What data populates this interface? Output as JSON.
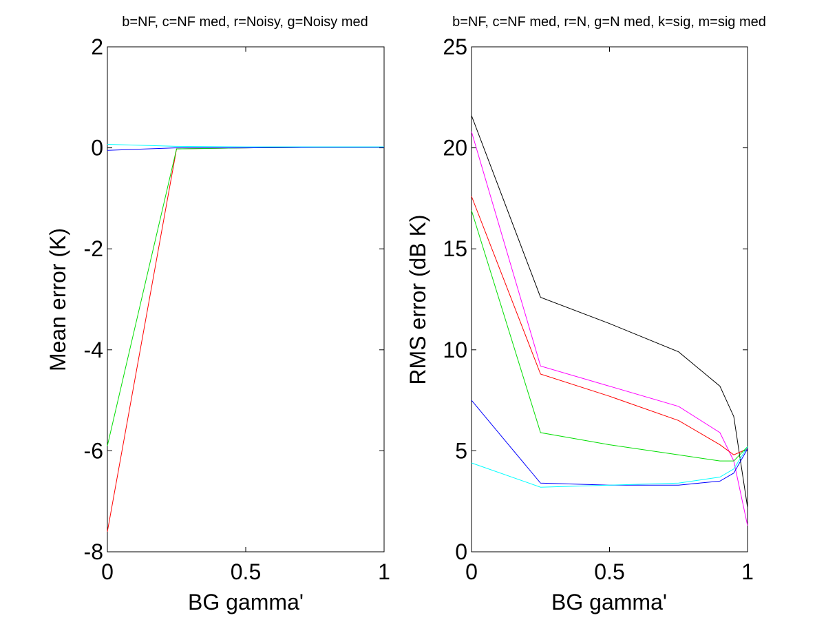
{
  "chart_data": [
    {
      "type": "line",
      "title": "b=NF, c=NF med, r=Noisy, g=Noisy med",
      "xlabel": "BG gamma'",
      "ylabel": "Mean error (K)",
      "xlim": [
        0,
        1
      ],
      "ylim": [
        -8,
        2
      ],
      "xticks": [
        0,
        0.5,
        1
      ],
      "xtick_labels": [
        "0",
        "0.5",
        "1"
      ],
      "yticks": [
        -8,
        -6,
        -4,
        -2,
        0,
        2
      ],
      "ytick_labels": [
        "-8",
        "-6",
        "-4",
        "-2",
        "0",
        "2"
      ],
      "grid": false,
      "series": [
        {
          "color": "#ff0000",
          "x": [
            0,
            0.25,
            0.5,
            0.75,
            0.9,
            0.95,
            1
          ],
          "y": [
            -7.6,
            -0.02,
            0.0,
            0.01,
            0.01,
            0.01,
            0.01
          ]
        },
        {
          "color": "#00dd00",
          "x": [
            0,
            0.25,
            0.5,
            0.75,
            0.9,
            0.95,
            1
          ],
          "y": [
            -5.9,
            -0.02,
            0.0,
            0.01,
            0.01,
            0.01,
            0.01
          ]
        },
        {
          "color": "#0000ff",
          "x": [
            0,
            0.25,
            0.5,
            0.75,
            0.9,
            0.95,
            1
          ],
          "y": [
            -0.05,
            0.0,
            0.0,
            0.01,
            0.01,
            0.01,
            0.01
          ]
        },
        {
          "color": "#00ffff",
          "x": [
            0,
            0.25,
            0.5,
            0.75,
            0.9,
            0.95,
            1
          ],
          "y": [
            0.07,
            0.03,
            0.02,
            0.02,
            0.02,
            0.02,
            0.02
          ]
        }
      ]
    },
    {
      "type": "line",
      "title": "b=NF, c=NF med, r=N, g=N med, k=sig, m=sig med",
      "xlabel": "BG gamma'",
      "ylabel": "RMS error (dB K)",
      "xlim": [
        0,
        1
      ],
      "ylim": [
        0,
        25
      ],
      "xticks": [
        0,
        0.5,
        1
      ],
      "xtick_labels": [
        "0",
        "0.5",
        "1"
      ],
      "yticks": [
        0,
        5,
        10,
        15,
        20,
        25
      ],
      "ytick_labels": [
        "0",
        "5",
        "10",
        "15",
        "20",
        "25"
      ],
      "grid": false,
      "series": [
        {
          "color": "#000000",
          "x": [
            0,
            0.25,
            0.5,
            0.75,
            0.9,
            0.95,
            1
          ],
          "y": [
            21.6,
            12.6,
            11.3,
            9.9,
            8.2,
            6.7,
            2.2
          ]
        },
        {
          "color": "#ff00ff",
          "x": [
            0,
            0.25,
            0.5,
            0.75,
            0.9,
            0.95,
            1
          ],
          "y": [
            20.8,
            9.2,
            8.2,
            7.2,
            5.9,
            4.5,
            1.3
          ]
        },
        {
          "color": "#ff0000",
          "x": [
            0,
            0.25,
            0.5,
            0.75,
            0.9,
            0.95,
            1
          ],
          "y": [
            17.6,
            8.8,
            7.7,
            6.5,
            5.3,
            4.8,
            5.1
          ]
        },
        {
          "color": "#00dd00",
          "x": [
            0,
            0.25,
            0.5,
            0.75,
            0.9,
            0.95,
            1
          ],
          "y": [
            16.9,
            5.9,
            5.3,
            4.8,
            4.5,
            4.5,
            5.2
          ]
        },
        {
          "color": "#0000ff",
          "x": [
            0,
            0.25,
            0.5,
            0.75,
            0.9,
            0.95,
            1
          ],
          "y": [
            7.5,
            3.4,
            3.3,
            3.3,
            3.5,
            3.9,
            5.1
          ]
        },
        {
          "color": "#00ffff",
          "x": [
            0,
            0.25,
            0.5,
            0.75,
            0.9,
            0.95,
            1
          ],
          "y": [
            4.4,
            3.2,
            3.3,
            3.4,
            3.7,
            4.1,
            5.2
          ]
        }
      ]
    }
  ]
}
